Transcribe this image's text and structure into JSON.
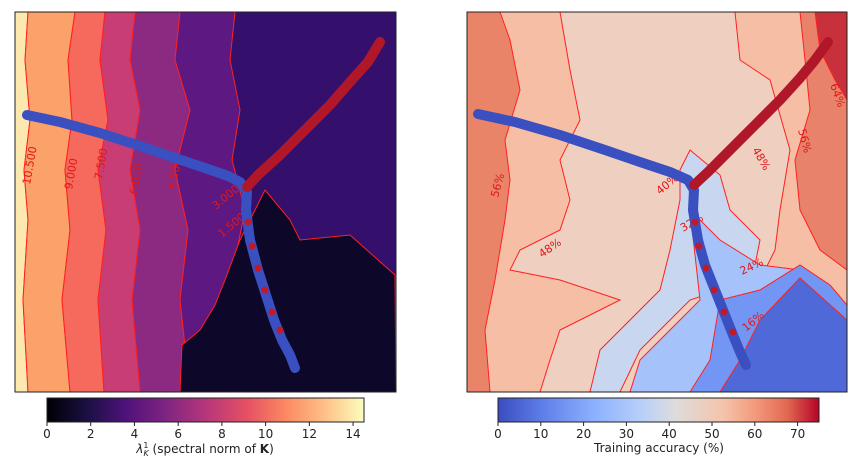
{
  "chart_data": [
    {
      "type": "contour",
      "colormap": "magma",
      "colorbar": {
        "label": "λ_K^1 (spectral norm of K)",
        "ticks": [
          0,
          2,
          4,
          6,
          8,
          10,
          12,
          14
        ],
        "range": [
          0,
          14.5
        ]
      },
      "contour_levels": [
        1.5,
        3.0,
        4.5,
        6.0,
        7.5,
        9.0,
        10.5
      ],
      "contour_labels": [
        "10.500",
        "9.000",
        "7.500",
        "6.000",
        "4.500",
        "3.000",
        "1.500"
      ],
      "trajectories": [
        {
          "color": "#3a4fc0",
          "name": ""
        },
        {
          "color": "#b0182a",
          "name": ""
        }
      ]
    },
    {
      "type": "contour",
      "colormap": "coolwarm",
      "colorbar": {
        "label": "Training accuracy (%)",
        "ticks": [
          0,
          10,
          20,
          30,
          40,
          50,
          60,
          70
        ],
        "range": [
          0,
          75
        ]
      },
      "contour_levels": [
        16,
        24,
        32,
        40,
        48,
        56,
        64
      ],
      "contour_labels": [
        "56%",
        "48%",
        "40%",
        "32%",
        "24%",
        "16%",
        "48%",
        "56%",
        "64%"
      ],
      "trajectories": [
        {
          "color": "#3a4fc0",
          "name": ""
        },
        {
          "color": "#b0182a",
          "name": ""
        }
      ]
    }
  ]
}
